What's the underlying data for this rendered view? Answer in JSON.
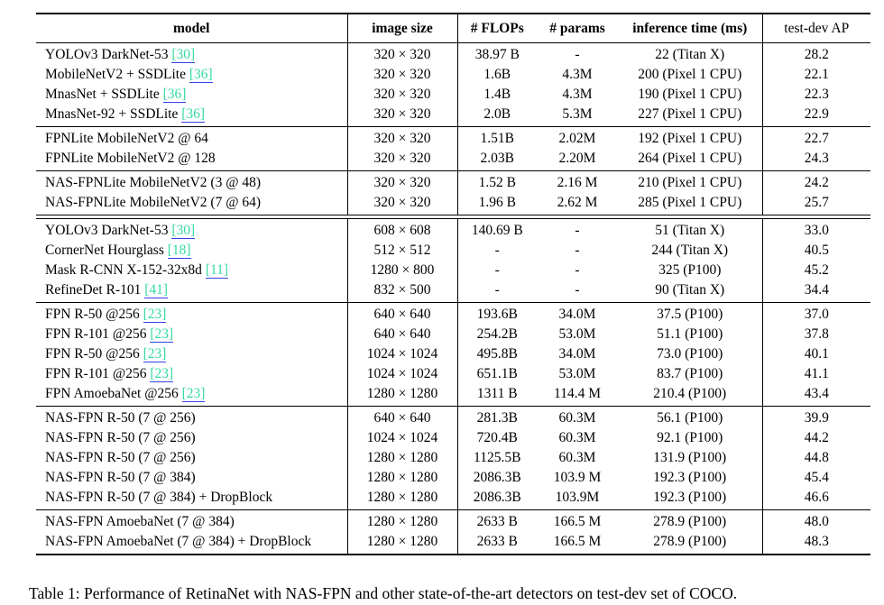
{
  "page": {
    "background": "#ffffff"
  },
  "colors": {
    "citation_text": "#35d9a2",
    "citation_underline": "#3342e3",
    "rule": "#000000"
  },
  "caption": "Table 1: Performance of RetinaNet with NAS-FPN and other state-of-the-art detectors on test-dev set of COCO.",
  "table": {
    "columns": [
      {
        "key": "model",
        "label": "model",
        "bold": true
      },
      {
        "key": "image-size",
        "label": "image size",
        "bold": true
      },
      {
        "key": "flops",
        "label": "# FLOPs",
        "bold": true
      },
      {
        "key": "params",
        "label": "# params",
        "bold": true
      },
      {
        "key": "inference",
        "label": "inference time (ms)",
        "bold": true
      },
      {
        "key": "ap",
        "label": "test-dev AP",
        "bold": false
      }
    ],
    "groups": [
      {
        "separator_after": "single",
        "rows": [
          {
            "model": "YOLOv3 DarkNet-53",
            "cite": "[30]",
            "image_size": "320 × 320",
            "flops": "38.97 B",
            "params": "-",
            "inference": "22 (Titan X)",
            "ap": "28.2"
          },
          {
            "model": "MobileNetV2 + SSDLite",
            "cite": "[36]",
            "image_size": "320 × 320",
            "flops": "1.6B",
            "params": "4.3M",
            "inference": "200 (Pixel 1 CPU)",
            "ap": "22.1"
          },
          {
            "model": "MnasNet + SSDLite",
            "cite": "[36]",
            "image_size": "320 × 320",
            "flops": "1.4B",
            "params": "4.3M",
            "inference": "190 (Pixel 1 CPU)",
            "ap": "22.3"
          },
          {
            "model": "MnasNet-92 + SSDLite",
            "cite": "[36]",
            "image_size": "320 × 320",
            "flops": "2.0B",
            "params": "5.3M",
            "inference": "227 (Pixel 1 CPU)",
            "ap": "22.9"
          }
        ]
      },
      {
        "separator_after": "single",
        "rows": [
          {
            "model": "FPNLite MobileNetV2  @ 64",
            "cite": null,
            "image_size": "320 × 320",
            "flops": "1.51B",
            "params": "2.02M",
            "inference": "192 (Pixel 1 CPU)",
            "ap": "22.7"
          },
          {
            "model": "FPNLite MobileNetV2  @ 128",
            "cite": null,
            "image_size": "320 × 320",
            "flops": "2.03B",
            "params": "2.20M",
            "inference": "264 (Pixel 1 CPU)",
            "ap": "24.3"
          }
        ]
      },
      {
        "separator_after": "double",
        "rows": [
          {
            "model": "NAS-FPNLite MobileNetV2 (3 @ 48)",
            "cite": null,
            "image_size": "320 × 320",
            "flops": "1.52 B",
            "params": "2.16 M",
            "inference": "210 (Pixel 1 CPU)",
            "ap": "24.2"
          },
          {
            "model": "NAS-FPNLite MobileNetV2 (7 @ 64)",
            "cite": null,
            "image_size": "320 × 320",
            "flops": "1.96 B",
            "params": "2.62 M",
            "inference": "285 (Pixel 1 CPU)",
            "ap": "25.7"
          }
        ]
      },
      {
        "separator_after": "single",
        "rows": [
          {
            "model": "YOLOv3 DarkNet-53",
            "cite": "[30]",
            "image_size": "608 × 608",
            "flops": "140.69 B",
            "params": "-",
            "inference": "51 (Titan X)",
            "ap": "33.0"
          },
          {
            "model": "CornerNet Hourglass",
            "cite": "[18]",
            "image_size": "512 × 512",
            "flops": "-",
            "params": "-",
            "inference": "244 (Titan X)",
            "ap": "40.5"
          },
          {
            "model": "Mask R-CNN X-152-32x8d",
            "cite": "[11]",
            "image_size": "1280 × 800",
            "flops": "-",
            "params": "-",
            "inference": "325 (P100)",
            "ap": "45.2"
          },
          {
            "model": "RefineDet R-101",
            "cite": "[41]",
            "image_size": "832 × 500",
            "flops": "-",
            "params": "-",
            "inference": "90 (Titan X)",
            "ap": "34.4"
          }
        ]
      },
      {
        "separator_after": "single",
        "rows": [
          {
            "model": "FPN R-50 @256",
            "cite": "[23]",
            "image_size": "640 × 640",
            "flops": "193.6B",
            "params": "34.0M",
            "inference": "37.5 (P100)",
            "ap": "37.0"
          },
          {
            "model": "FPN R-101 @256",
            "cite": "[23]",
            "image_size": "640 × 640",
            "flops": "254.2B",
            "params": "53.0M",
            "inference": "51.1 (P100)",
            "ap": "37.8"
          },
          {
            "model": "FPN R-50 @256",
            "cite": "[23]",
            "image_size": "1024 × 1024",
            "flops": "495.8B",
            "params": "34.0M",
            "inference": "73.0 (P100)",
            "ap": "40.1"
          },
          {
            "model": "FPN R-101 @256",
            "cite": "[23]",
            "image_size": "1024 × 1024",
            "flops": "651.1B",
            "params": "53.0M",
            "inference": "83.7 (P100)",
            "ap": "41.1"
          },
          {
            "model": "FPN AmoebaNet @256",
            "cite": "[23]",
            "image_size": "1280 × 1280",
            "flops": "1311 B",
            "params": "114.4 M",
            "inference": "210.4 (P100)",
            "ap": "43.4"
          }
        ]
      },
      {
        "separator_after": "single",
        "rows": [
          {
            "model": "NAS-FPN R-50 (7 @ 256)",
            "cite": null,
            "image_size": "640 × 640",
            "flops": "281.3B",
            "params": "60.3M",
            "inference": "56.1 (P100)",
            "ap": "39.9"
          },
          {
            "model": "NAS-FPN R-50 (7 @ 256)",
            "cite": null,
            "image_size": "1024 × 1024",
            "flops": "720.4B",
            "params": "60.3M",
            "inference": "92.1 (P100)",
            "ap": "44.2"
          },
          {
            "model": "NAS-FPN R-50 (7 @ 256)",
            "cite": null,
            "image_size": "1280 × 1280",
            "flops": "1125.5B",
            "params": "60.3M",
            "inference": "131.9 (P100)",
            "ap": "44.8"
          },
          {
            "model": "NAS-FPN R-50 (7 @ 384)",
            "cite": null,
            "image_size": "1280 × 1280",
            "flops": "2086.3B",
            "params": "103.9 M",
            "inference": "192.3 (P100)",
            "ap": "45.4"
          },
          {
            "model": "NAS-FPN R-50 (7 @ 384) + DropBlock",
            "cite": null,
            "image_size": "1280 × 1280",
            "flops": "2086.3B",
            "params": "103.9M",
            "inference": "192.3 (P100)",
            "ap": "46.6"
          }
        ]
      },
      {
        "separator_after": "none",
        "rows": [
          {
            "model": "NAS-FPN AmoebaNet (7 @ 384)",
            "cite": null,
            "image_size": "1280 × 1280",
            "flops": "2633 B",
            "params": "166.5 M",
            "inference": "278.9 (P100)",
            "ap": "48.0"
          },
          {
            "model": "NAS-FPN AmoebaNet (7 @ 384) + DropBlock",
            "cite": null,
            "image_size": "1280 × 1280",
            "flops": "2633 B",
            "params": "166.5 M",
            "inference": "278.9 (P100)",
            "ap": "48.3"
          }
        ]
      }
    ]
  }
}
